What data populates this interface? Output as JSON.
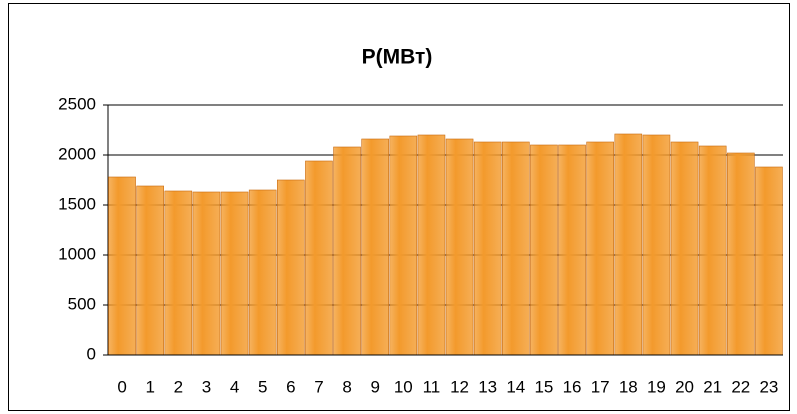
{
  "chart_data": {
    "type": "bar",
    "title": "P(МВт)",
    "categories": [
      "0",
      "1",
      "2",
      "3",
      "4",
      "5",
      "6",
      "7",
      "8",
      "9",
      "10",
      "11",
      "12",
      "13",
      "14",
      "15",
      "16",
      "17",
      "18",
      "19",
      "20",
      "21",
      "22",
      "23"
    ],
    "values": [
      1780,
      1690,
      1640,
      1630,
      1630,
      1650,
      1750,
      1940,
      2080,
      2160,
      2190,
      2200,
      2160,
      2130,
      2130,
      2100,
      2100,
      2130,
      2210,
      2200,
      2130,
      2090,
      2020,
      1880
    ],
    "color": "#f39a2c",
    "ylim": [
      0,
      2500
    ],
    "yticks": [
      0,
      500,
      1000,
      1500,
      2000,
      2500
    ],
    "grid": true
  }
}
